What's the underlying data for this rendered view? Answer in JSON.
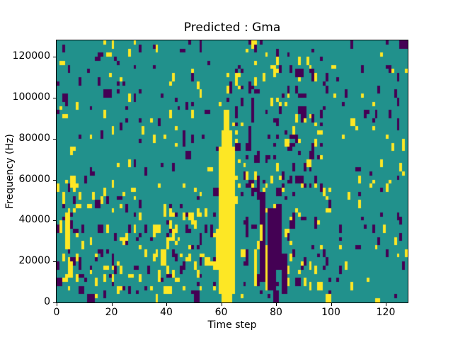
{
  "chart_data": {
    "type": "heatmap",
    "title": "Predicted : Gma",
    "xlabel": "Time step",
    "ylabel": "Frequency (Hz)",
    "x_range": [
      0,
      128
    ],
    "y_range": [
      0,
      128000
    ],
    "grid_cols": 128,
    "grid_rows": 64,
    "x_ticks": [
      0,
      20,
      40,
      60,
      80,
      100,
      120
    ],
    "y_ticks": [
      0,
      20000,
      40000,
      60000,
      80000,
      100000,
      120000
    ],
    "legend": "none",
    "grid": false,
    "colors": {
      "figure_background": "#ffffff",
      "cell_mid_teal": "#21918c",
      "cell_high_yellow": "#fde725",
      "cell_low_purple": "#440154",
      "axis_text": "#000000",
      "spine": "#000000"
    },
    "description": "Ternary-valued spectrogram prediction mask: teal = neutral, yellow = high, purple = low. Prominent yellow vertical band at time 59-65 from 0 Hz up to ~96000 Hz; dense purple cluster at time 69-84 between ~4000-54000 Hz; sparse scattered yellow/purple dashes elsewhere.",
    "features": [
      {
        "t": 59,
        "r": 2,
        "w": 6,
        "h": 36,
        "c": "Y"
      },
      {
        "t": 58,
        "r": 8,
        "w": 1,
        "h": 10,
        "c": "Y"
      },
      {
        "t": 60,
        "r": 0,
        "w": 4,
        "h": 2,
        "c": "Y"
      },
      {
        "t": 60,
        "r": 38,
        "w": 4,
        "h": 4,
        "c": "Y"
      },
      {
        "t": 61,
        "r": 42,
        "w": 2,
        "h": 5,
        "c": "Y"
      },
      {
        "t": 64,
        "r": 14,
        "w": 1,
        "h": 12,
        "c": "Y"
      },
      {
        "t": 74,
        "r": 5,
        "w": 2,
        "h": 22,
        "c": "P"
      },
      {
        "t": 77,
        "r": 3,
        "w": 3,
        "h": 20,
        "c": "P"
      },
      {
        "t": 80,
        "r": 8,
        "w": 2,
        "h": 16,
        "c": "P"
      },
      {
        "t": 82,
        "r": 2,
        "w": 2,
        "h": 10,
        "c": "P"
      },
      {
        "t": 73,
        "r": 25,
        "w": 1,
        "h": 6,
        "c": "P"
      },
      {
        "t": 79,
        "r": 0,
        "w": 2,
        "h": 3,
        "c": "P"
      },
      {
        "t": 70,
        "r": 37,
        "w": 1,
        "h": 6,
        "c": "P"
      },
      {
        "t": 71,
        "r": 44,
        "w": 1,
        "h": 4,
        "c": "P"
      },
      {
        "t": 69,
        "r": 9,
        "w": 1,
        "h": 4,
        "c": "P"
      },
      {
        "t": 69,
        "r": 16,
        "w": 1,
        "h": 5,
        "c": "P"
      },
      {
        "t": 72,
        "r": 4,
        "w": 1,
        "h": 9,
        "c": "Y"
      },
      {
        "t": 76,
        "r": 3,
        "w": 1,
        "h": 11,
        "c": "Y"
      },
      {
        "t": 74,
        "r": 15,
        "w": 1,
        "h": 4,
        "c": "Y"
      },
      {
        "t": 3,
        "r": 13,
        "w": 2,
        "h": 9,
        "c": "Y"
      },
      {
        "t": 4,
        "r": 6,
        "w": 2,
        "h": 4,
        "c": "Y"
      },
      {
        "t": 2,
        "r": 24,
        "w": 1,
        "h": 3,
        "c": "Y"
      },
      {
        "t": 1,
        "r": 17,
        "w": 1,
        "h": 3,
        "c": "Y"
      },
      {
        "t": 5,
        "r": 28,
        "w": 1,
        "h": 3,
        "c": "Y"
      },
      {
        "t": 38,
        "r": 9,
        "w": 2,
        "h": 4,
        "c": "Y"
      },
      {
        "t": 40,
        "r": 13,
        "w": 1,
        "h": 3,
        "c": "Y"
      },
      {
        "t": 37,
        "r": 5,
        "w": 1,
        "h": 3,
        "c": "Y"
      },
      {
        "t": 41,
        "r": 18,
        "w": 1,
        "h": 2,
        "c": "Y"
      },
      {
        "t": 39,
        "r": 2,
        "w": 2,
        "h": 2,
        "c": "Y"
      },
      {
        "t": 36,
        "r": 0,
        "w": 1,
        "h": 2,
        "c": "Y"
      },
      {
        "t": 11,
        "r": 0,
        "w": 3,
        "h": 2,
        "c": "P"
      },
      {
        "t": 50,
        "r": 0,
        "w": 2,
        "h": 3,
        "c": "P"
      },
      {
        "t": 126,
        "r": 38,
        "w": 1,
        "h": 2,
        "c": "Y"
      },
      {
        "t": 124,
        "r": 42,
        "w": 1,
        "h": 3,
        "c": "P"
      },
      {
        "t": 125,
        "r": 62,
        "w": 3,
        "h": 2,
        "c": "P"
      },
      {
        "t": 121,
        "r": 56,
        "w": 1,
        "h": 2,
        "c": "P"
      }
    ],
    "noise": {
      "seed": 42,
      "regions": [
        {
          "t0": 0,
          "t1": 128,
          "r0": 0,
          "r1": 64,
          "y": 0.022,
          "p": 0.028
        },
        {
          "t0": 0,
          "t1": 64,
          "r0": 2,
          "r1": 30,
          "y": 0.03,
          "p": 0.018
        },
        {
          "t0": 64,
          "t1": 100,
          "r0": 26,
          "r1": 58,
          "y": 0.018,
          "p": 0.055
        },
        {
          "t0": 36,
          "t1": 52,
          "r0": 4,
          "r1": 24,
          "y": 0.045,
          "p": 0.02
        },
        {
          "t0": 0,
          "t1": 10,
          "r0": 4,
          "r1": 32,
          "y": 0.05,
          "p": 0.02
        },
        {
          "t0": 84,
          "t1": 100,
          "r0": 2,
          "r1": 30,
          "y": 0.03,
          "p": 0.03
        }
      ]
    }
  }
}
